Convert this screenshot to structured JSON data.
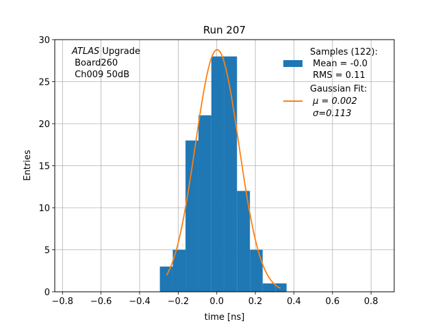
{
  "chart_data": {
    "type": "bar",
    "title": "Run 207",
    "xlabel": "time [ns]",
    "ylabel": "Entries",
    "xlim": [
      -0.84,
      0.92
    ],
    "ylim": [
      0,
      30
    ],
    "grid": true,
    "xticks": [
      -0.8,
      -0.6,
      -0.4,
      -0.2,
      0.0,
      0.2,
      0.4,
      0.6,
      0.8
    ],
    "xtick_labels": [
      "−0.8",
      "−0.6",
      "−0.4",
      "−0.2",
      "0.0",
      "0.2",
      "0.4",
      "0.6",
      "0.8"
    ],
    "yticks": [
      0,
      5,
      10,
      15,
      20,
      25,
      30
    ],
    "ytick_labels": [
      "0",
      "5",
      "10",
      "15",
      "20",
      "25",
      "30"
    ],
    "histogram": {
      "name": "Samples (122):",
      "color": "#1f77b4",
      "bin_edges": [
        -0.295,
        -0.228,
        -0.162,
        -0.095,
        -0.028,
        0.038,
        0.105,
        0.172,
        0.238,
        0.305,
        0.362
      ],
      "counts": [
        3,
        5,
        18,
        21,
        28,
        28,
        12,
        5,
        1,
        1
      ]
    },
    "fit": {
      "name": "Gaussian Fit:",
      "color": "#ff7f0e",
      "mu": 0.002,
      "sigma": 0.113,
      "amplitude": 28.8,
      "x_range": [
        -0.26,
        0.33
      ]
    },
    "legend": {
      "placement": "top-right",
      "entries": [
        {
          "kind": "patch",
          "color": "#1f77b4",
          "lines": [
            "Samples (122):",
            " Mean = -0.0",
            " RMS = 0.11"
          ]
        },
        {
          "kind": "line",
          "color": "#ff7f0e",
          "lines": [
            "Gaussian Fit:",
            " μ = 0.002",
            " σ=0.113"
          ]
        }
      ]
    },
    "annotation": {
      "placement": "top-left",
      "italic": "ATLAS",
      "rest": " Upgrade",
      "lines": [
        " Board260",
        " Ch009 50dB"
      ]
    }
  }
}
